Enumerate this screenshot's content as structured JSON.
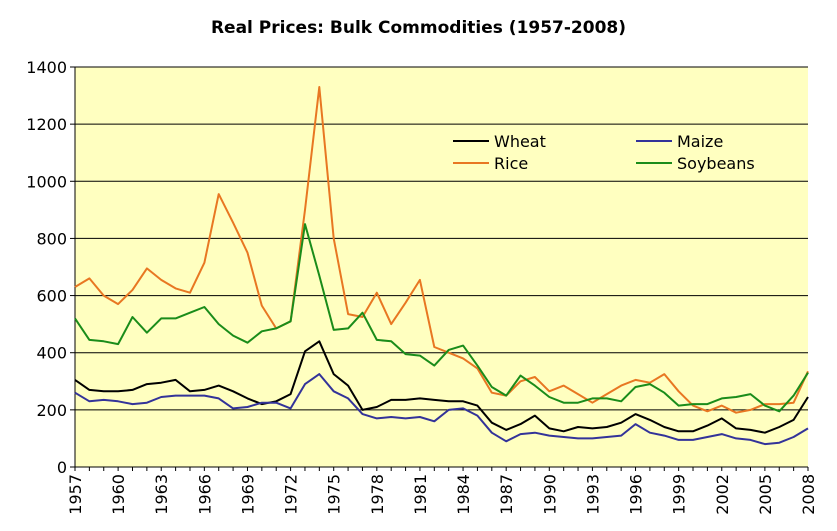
{
  "chart_data": {
    "type": "line",
    "title": "Real Prices: Bulk Commodities (1957-2008)",
    "xlabel": "",
    "ylabel": "",
    "ylim": [
      0,
      1400
    ],
    "yticks": [
      0,
      200,
      400,
      600,
      800,
      1000,
      1200,
      1400
    ],
    "xlim": [
      1957,
      2008
    ],
    "xticks": [
      1957,
      1960,
      1963,
      1966,
      1969,
      1972,
      1975,
      1978,
      1981,
      1984,
      1987,
      1990,
      1993,
      1996,
      1999,
      2002,
      2005,
      2008
    ],
    "grid": "horizontal",
    "background": "#ffffc0",
    "legend_position": "top-right",
    "x": [
      1957,
      1958,
      1959,
      1960,
      1961,
      1962,
      1963,
      1964,
      1965,
      1966,
      1967,
      1968,
      1969,
      1970,
      1971,
      1972,
      1973,
      1974,
      1975,
      1976,
      1977,
      1978,
      1979,
      1980,
      1981,
      1982,
      1983,
      1984,
      1985,
      1986,
      1987,
      1988,
      1989,
      1990,
      1991,
      1992,
      1993,
      1994,
      1995,
      1996,
      1997,
      1998,
      1999,
      2000,
      2001,
      2002,
      2003,
      2004,
      2005,
      2006,
      2007,
      2008
    ],
    "series": [
      {
        "name": "Wheat",
        "color": "#000000",
        "values": [
          305,
          270,
          265,
          265,
          270,
          290,
          295,
          305,
          265,
          270,
          285,
          265,
          240,
          220,
          230,
          255,
          405,
          440,
          325,
          285,
          200,
          210,
          235,
          235,
          240,
          235,
          230,
          230,
          215,
          155,
          130,
          150,
          180,
          135,
          125,
          140,
          135,
          140,
          155,
          185,
          165,
          140,
          125,
          125,
          145,
          170,
          135,
          130,
          120,
          140,
          165,
          245
        ]
      },
      {
        "name": "Maize",
        "color": "#333399",
        "values": [
          260,
          230,
          235,
          230,
          220,
          225,
          245,
          250,
          250,
          250,
          240,
          205,
          210,
          225,
          225,
          205,
          290,
          325,
          265,
          240,
          185,
          170,
          175,
          170,
          175,
          160,
          200,
          205,
          180,
          120,
          90,
          115,
          120,
          110,
          105,
          100,
          100,
          105,
          110,
          150,
          120,
          110,
          95,
          95,
          105,
          115,
          100,
          95,
          80,
          85,
          105,
          135
        ]
      },
      {
        "name": "Rice",
        "color": "#e87722",
        "values": [
          630,
          660,
          600,
          570,
          620,
          695,
          655,
          625,
          610,
          715,
          955,
          855,
          750,
          565,
          485,
          510,
          900,
          1330,
          800,
          535,
          525,
          610,
          500,
          575,
          655,
          420,
          400,
          380,
          345,
          260,
          250,
          300,
          315,
          265,
          285,
          255,
          225,
          255,
          285,
          305,
          295,
          325,
          265,
          215,
          195,
          215,
          190,
          200,
          220,
          220,
          225,
          335
        ]
      },
      {
        "name": "Soybeans",
        "color": "#1a8c1a",
        "values": [
          520,
          445,
          440,
          430,
          525,
          470,
          520,
          520,
          540,
          560,
          500,
          460,
          435,
          475,
          485,
          510,
          850,
          670,
          480,
          485,
          540,
          445,
          440,
          395,
          390,
          355,
          410,
          425,
          355,
          280,
          250,
          320,
          285,
          245,
          225,
          225,
          240,
          240,
          230,
          280,
          290,
          260,
          215,
          220,
          220,
          240,
          245,
          255,
          215,
          195,
          250,
          330
        ]
      }
    ]
  }
}
